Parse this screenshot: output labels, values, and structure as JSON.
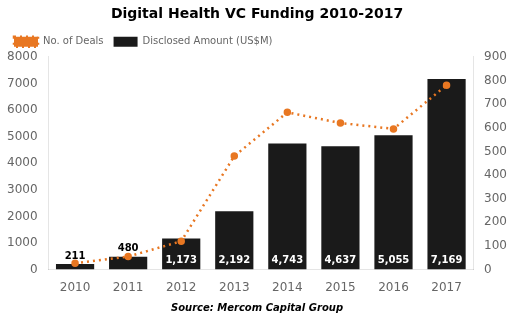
{
  "chart_data": {
    "type": "bar",
    "title": "Digital Health VC Funding 2010-2017",
    "categories": [
      "2010",
      "2011",
      "2012",
      "2013",
      "2014",
      "2015",
      "2016",
      "2017"
    ],
    "series": [
      {
        "name": "Disclosed Amount (US$M)",
        "color": "#1a1a1a",
        "values": [
          211,
          480,
          1173,
          2192,
          4743,
          4637,
          5055,
          7169
        ],
        "value_labels": [
          "211",
          "480",
          "1,173",
          "2,192",
          "4,743",
          "4,637",
          "5,055",
          "7,169"
        ],
        "data_labels": true
      },
      {
        "name": "No. of Deals",
        "type": "line",
        "axis": "y2",
        "color": "#e87722",
        "line_style": "dotted",
        "marker": "circle",
        "values": [
          27,
          55,
          120,
          480,
          665,
          620,
          595,
          780
        ]
      }
    ],
    "ylim": [
      0,
      8000
    ],
    "yticks": [
      0,
      1000,
      2000,
      3000,
      4000,
      5000,
      6000,
      7000,
      8000
    ],
    "y2lim": [
      0,
      900
    ],
    "y2ticks": [
      0,
      100,
      200,
      300,
      400,
      500,
      600,
      700,
      800,
      900
    ],
    "grid": false,
    "legend": "upper left",
    "annotations": [
      "Source: Mercom Capital Group"
    ]
  }
}
